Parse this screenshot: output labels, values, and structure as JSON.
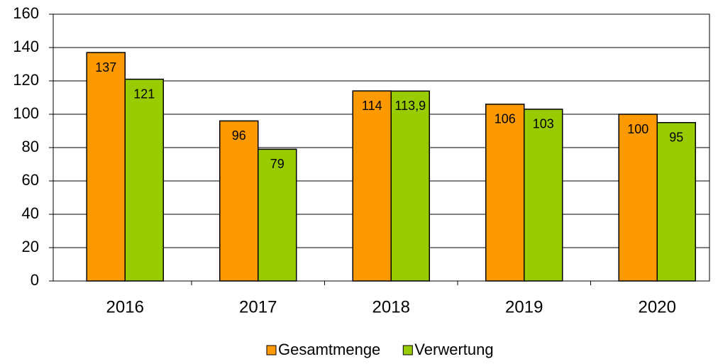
{
  "chart_data": {
    "type": "bar",
    "categories": [
      "2016",
      "2017",
      "2018",
      "2019",
      "2020"
    ],
    "series": [
      {
        "name": "Gesamtmenge",
        "color": "#ff9900",
        "values": [
          137,
          96,
          114,
          106,
          100
        ],
        "value_labels": [
          "137",
          "96",
          "114",
          "106",
          "100"
        ]
      },
      {
        "name": "Verwertung",
        "color": "#99cc00",
        "values": [
          121,
          79,
          113.9,
          103,
          95
        ],
        "value_labels": [
          "121",
          "79",
          "113,9",
          "103",
          "95"
        ]
      }
    ],
    "ylim": [
      0,
      160
    ],
    "yticks": [
      0,
      20,
      40,
      60,
      80,
      100,
      120,
      140,
      160
    ],
    "grid": true,
    "legend": "bottom"
  }
}
